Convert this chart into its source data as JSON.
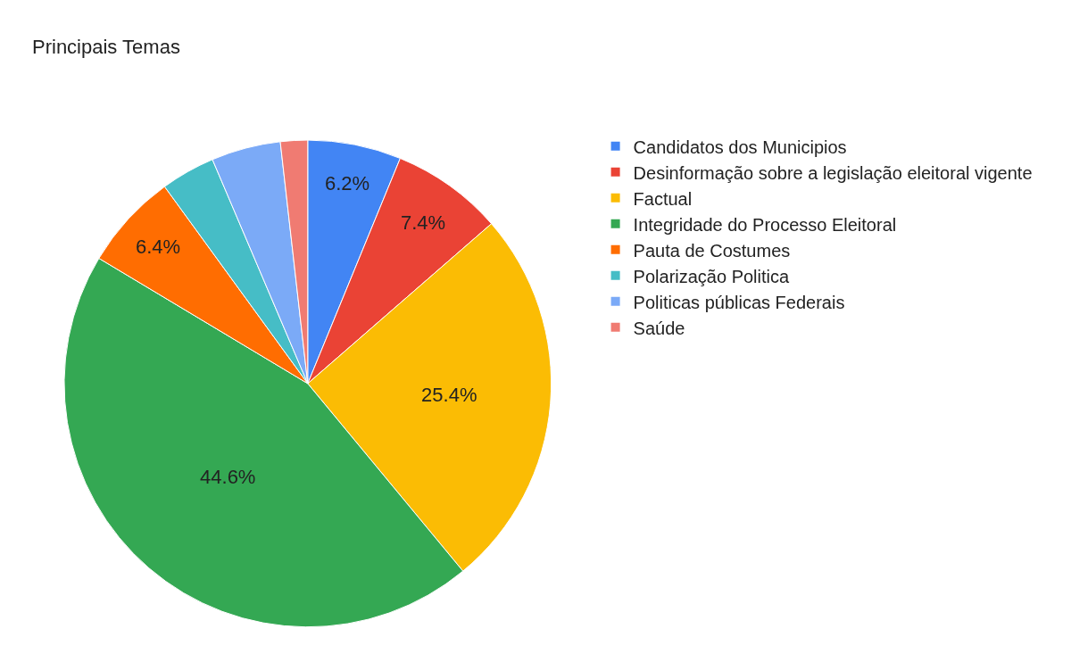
{
  "chart_data": {
    "type": "pie",
    "title": "Principais Temas",
    "categories": [
      "Candidatos dos Municipios",
      "Desinformação sobre a legislação eleitoral vigente",
      "Factual",
      "Integridade do Processo Eleitoral",
      "Pauta de Costumes",
      "Polarização Politica",
      "Politicas públicas Federais",
      "Saúde"
    ],
    "values": [
      6.2,
      7.4,
      25.4,
      44.6,
      6.4,
      3.6,
      4.6,
      1.8
    ],
    "colors": [
      "#4285f4",
      "#ea4335",
      "#fbbc04",
      "#34a853",
      "#ff6d01",
      "#46bdc6",
      "#7baaf7",
      "#f07b72"
    ],
    "value_labels": [
      "6.2%",
      "7.4%",
      "25.4%",
      "44.6%",
      "6.4%",
      null,
      null,
      null
    ],
    "legend": "top right"
  }
}
